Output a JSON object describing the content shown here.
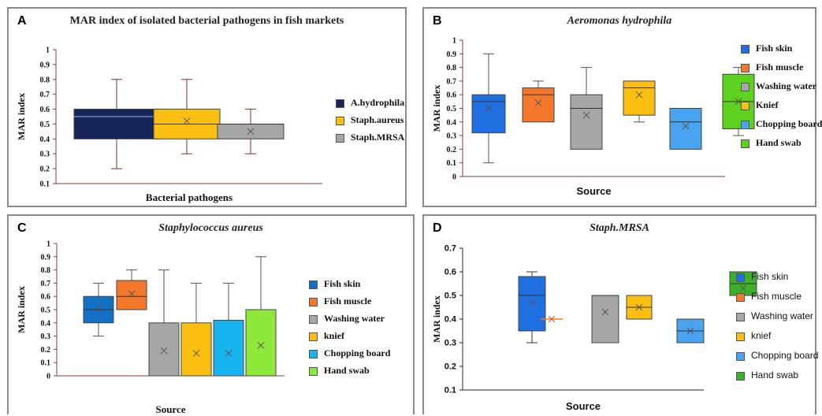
{
  "panels": [
    {
      "letter": "A",
      "title": "MAR index of  isolated bacterial pathogens in fish markets",
      "legend_sans": false,
      "chart_data": {
        "type": "box",
        "title": "MAR index of  isolated bacterial pathogens in fish markets",
        "xlabel": "Bacterial pathogens",
        "ylabel": "MAR index",
        "ylim": [
          0.1,
          1
        ],
        "yticks": [
          "0.1",
          "0.2",
          "0.3",
          "0.4",
          "0.5",
          "0.6",
          "0.7",
          "0.8",
          "0.9",
          "1"
        ],
        "legend_position": "right",
        "series": [
          {
            "name": "A.hydrophila",
            "color": "#14255c",
            "whisker_min": 0.2,
            "q1": 0.4,
            "median": 0.55,
            "q3": 0.6,
            "whisker_max": 0.8,
            "mean": null
          },
          {
            "name": "Staph.aureus",
            "color": "#fbbf12",
            "whisker_min": 0.3,
            "q1": 0.4,
            "median": 0.5,
            "q3": 0.6,
            "whisker_max": 0.8,
            "mean": 0.52
          },
          {
            "name": "Staph.MRSA",
            "color": "#a6a6a6",
            "whisker_min": 0.3,
            "q1": 0.4,
            "median": 0.5,
            "q3": 0.5,
            "whisker_max": 0.6,
            "mean": 0.45
          }
        ]
      }
    },
    {
      "letter": "B",
      "title": "Aeromonas hydrophila",
      "legend_sans": false,
      "chart_data": {
        "type": "box",
        "title": "Aeromonas hydrophila",
        "xlabel": "Source",
        "ylabel": "MAR index",
        "ylim": [
          0,
          1
        ],
        "yticks": [
          "0",
          "0.1",
          "0.2",
          "0.3",
          "0.4",
          "0.5",
          "0.6",
          "0.7",
          "0.8",
          "0.9",
          "1"
        ],
        "legend_position": "right",
        "series": [
          {
            "name": "Fish skin",
            "color": "#1f6fe0",
            "whisker_min": 0.1,
            "q1": 0.32,
            "median": 0.55,
            "q3": 0.6,
            "whisker_max": 0.9,
            "mean": 0.5
          },
          {
            "name": "Fish muscle",
            "color": "#f4782c",
            "whisker_min": 0.4,
            "q1": 0.4,
            "median": 0.6,
            "q3": 0.65,
            "whisker_max": 0.7,
            "mean": 0.54
          },
          {
            "name": "Washing water",
            "color": "#a6a6a6",
            "whisker_min": 0.2,
            "q1": 0.2,
            "median": 0.5,
            "q3": 0.6,
            "whisker_max": 0.8,
            "mean": 0.45
          },
          {
            "name": "Knief",
            "color": "#fbbf12",
            "whisker_min": 0.4,
            "q1": 0.45,
            "median": 0.65,
            "q3": 0.7,
            "whisker_max": 0.7,
            "mean": 0.6
          },
          {
            "name": "Chopping board",
            "color": "#4aa3ee",
            "whisker_min": 0.2,
            "q1": 0.2,
            "median": 0.4,
            "q3": 0.5,
            "whisker_max": 0.5,
            "mean": 0.37
          },
          {
            "name": "Hand swab",
            "color": "#5cd11e",
            "whisker_min": 0.3,
            "q1": 0.35,
            "median": 0.55,
            "q3": 0.75,
            "whisker_max": 0.8,
            "mean": 0.55
          }
        ]
      }
    },
    {
      "letter": "C",
      "title": "Staphylococcus aureus",
      "legend_sans": false,
      "chart_data": {
        "type": "box",
        "title": "Staphylococcus aureus",
        "xlabel": "Source",
        "ylabel": "MAR index",
        "ylim": [
          0,
          1
        ],
        "yticks": [
          "0",
          "0.1",
          "0.2",
          "0.3",
          "0.4",
          "0.5",
          "0.6",
          "0.7",
          "0.8",
          "0.9",
          "1"
        ],
        "legend_position": "right",
        "series": [
          {
            "name": "Fish skin",
            "color": "#1470c4",
            "whisker_min": 0.3,
            "q1": 0.4,
            "median": 0.5,
            "q3": 0.6,
            "whisker_max": 0.7,
            "mean": 0.51
          },
          {
            "name": "Fish muscle",
            "color": "#f4782c",
            "whisker_min": 0.5,
            "q1": 0.5,
            "median": 0.6,
            "q3": 0.72,
            "whisker_max": 0.8,
            "mean": 0.62
          },
          {
            "name": "Washing water",
            "color": "#a6a6a6",
            "whisker_min": 0,
            "q1": 0,
            "median": 0,
            "q3": 0.4,
            "whisker_max": 0.8,
            "mean": 0.19
          },
          {
            "name": "knief",
            "color": "#fbbf12",
            "whisker_min": 0,
            "q1": 0,
            "median": 0,
            "q3": 0.4,
            "whisker_max": 0.7,
            "mean": 0.17
          },
          {
            "name": "Chopping board",
            "color": "#17b3ee",
            "whisker_min": 0,
            "q1": 0,
            "median": 0,
            "q3": 0.42,
            "whisker_max": 0.7,
            "mean": 0.17
          },
          {
            "name": "Hand swab",
            "color": "#8ee83a",
            "whisker_min": 0,
            "q1": 0,
            "median": 0,
            "q3": 0.5,
            "whisker_max": 0.9,
            "mean": 0.23
          }
        ]
      }
    },
    {
      "letter": "D",
      "title": "Staph.MRSA",
      "legend_sans": true,
      "chart_data": {
        "type": "box",
        "title": "Staph.MRSA",
        "xlabel": "Source",
        "ylabel": "MAR index",
        "ylim": [
          0.1,
          0.7
        ],
        "yticks": [
          "0.1",
          "0.2",
          "0.3",
          "0.4",
          "0.5",
          "0.6",
          "0.7"
        ],
        "legend_position": "right",
        "series": [
          {
            "name": "Fish skin",
            "color": "#1f6fe0",
            "whisker_min": 0.3,
            "q1": 0.35,
            "median": 0.5,
            "q3": 0.58,
            "whisker_max": 0.6,
            "mean": 0.47
          },
          {
            "name": "Fish muscle",
            "color": "#f4782c",
            "whisker_min": 0.4,
            "q1": 0.4,
            "median": 0.4,
            "q3": 0.4,
            "whisker_max": 0.4,
            "mean": 0.4
          },
          {
            "name": "Washing water",
            "color": "#a6a6a6",
            "whisker_min": 0.3,
            "q1": 0.3,
            "median": 0.5,
            "q3": 0.5,
            "whisker_max": 0.5,
            "mean": 0.43
          },
          {
            "name": "knief",
            "color": "#fbbf12",
            "whisker_min": 0.4,
            "q1": 0.4,
            "median": 0.45,
            "q3": 0.5,
            "whisker_max": 0.5,
            "mean": 0.45
          },
          {
            "name": "Chopping board",
            "color": "#4aa3ee",
            "whisker_min": 0.3,
            "q1": 0.3,
            "median": 0.35,
            "q3": 0.4,
            "whisker_max": 0.4,
            "mean": 0.35
          },
          {
            "name": "Hand swab",
            "color": "#3cb02a",
            "whisker_min": 0.5,
            "q1": 0.5,
            "median": 0.55,
            "q3": 0.6,
            "whisker_max": 0.6,
            "mean": 0.53
          }
        ]
      }
    }
  ]
}
